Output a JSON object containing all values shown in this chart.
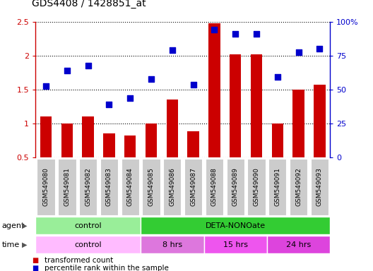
{
  "title": "GDS4408 / 1428851_at",
  "samples": [
    "GSM549080",
    "GSM549081",
    "GSM549082",
    "GSM549083",
    "GSM549084",
    "GSM549085",
    "GSM549086",
    "GSM549087",
    "GSM549088",
    "GSM549089",
    "GSM549090",
    "GSM549091",
    "GSM549092",
    "GSM549093"
  ],
  "bar_values": [
    1.1,
    1.0,
    1.1,
    0.85,
    0.82,
    1.0,
    1.35,
    0.88,
    2.48,
    2.02,
    2.02,
    1.0,
    1.5,
    1.57
  ],
  "dot_values": [
    1.55,
    1.78,
    1.85,
    1.28,
    1.37,
    1.65,
    2.08,
    1.57,
    2.38,
    2.32,
    2.32,
    1.68,
    2.05,
    2.1
  ],
  "bar_color": "#CC0000",
  "dot_color": "#0000CC",
  "ylim_left": [
    0.5,
    2.5
  ],
  "ylim_right": [
    0,
    100
  ],
  "yticks_left": [
    0.5,
    1.0,
    1.5,
    2.0,
    2.5
  ],
  "ytick_labels_left": [
    "0.5",
    "1",
    "1.5",
    "2",
    "2.5"
  ],
  "yticks_right": [
    0,
    25,
    50,
    75,
    100
  ],
  "ytick_labels_right": [
    "0",
    "25",
    "50",
    "75",
    "100%"
  ],
  "agent_groups": [
    {
      "label": "control",
      "start": 0,
      "end": 5,
      "color": "#99EE99"
    },
    {
      "label": "DETA-NONOate",
      "start": 5,
      "end": 14,
      "color": "#33CC33"
    }
  ],
  "time_groups": [
    {
      "label": "control",
      "start": 0,
      "end": 5,
      "color": "#FFBBFF"
    },
    {
      "label": "8 hrs",
      "start": 5,
      "end": 8,
      "color": "#DD77DD"
    },
    {
      "label": "15 hrs",
      "start": 8,
      "end": 11,
      "color": "#EE55EE"
    },
    {
      "label": "24 hrs",
      "start": 11,
      "end": 14,
      "color": "#DD44DD"
    }
  ],
  "legend_bar_label": "transformed count",
  "legend_dot_label": "percentile rank within the sample",
  "agent_label": "agent",
  "time_label": "time",
  "tick_label_bg": "#CCCCCC"
}
